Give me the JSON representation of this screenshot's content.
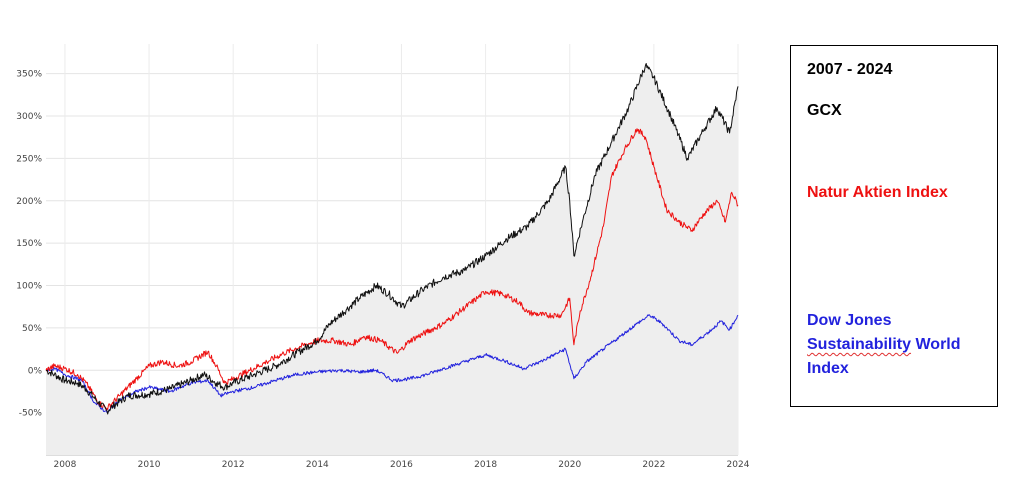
{
  "legend": {
    "period": "2007 - 2024",
    "gcx": "GCX",
    "nai": "Natur Aktien Index",
    "djsi_line1": "Dow Jones",
    "djsi_line2_a": "Sustainability",
    "djsi_line2_b": " World",
    "djsi_line3": "Index"
  },
  "chart_data": {
    "type": "line",
    "title": "",
    "xlabel": "",
    "ylabel": "",
    "xlim": [
      2007.55,
      2024.0
    ],
    "ylim": [
      -100,
      385
    ],
    "grid": true,
    "legend_position": "right",
    "x_ticks": [
      "2008",
      "2010",
      "2012",
      "2014",
      "2016",
      "2018",
      "2020",
      "2022",
      "2024"
    ],
    "y_ticks": [
      "350%",
      "300%",
      "250%",
      "200%",
      "150%",
      "100%",
      "50%",
      "0%",
      "-50%"
    ],
    "series": [
      {
        "name": "GCX",
        "color": "#111111",
        "points": [
          [
            2007.55,
            0
          ],
          [
            2007.75,
            -5
          ],
          [
            2008.0,
            -12
          ],
          [
            2008.3,
            -15
          ],
          [
            2008.5,
            -22
          ],
          [
            2008.8,
            -38
          ],
          [
            2009.0,
            -48
          ],
          [
            2009.15,
            -42
          ],
          [
            2009.5,
            -30
          ],
          [
            2010.0,
            -28
          ],
          [
            2010.5,
            -22
          ],
          [
            2011.0,
            -12
          ],
          [
            2011.3,
            -5
          ],
          [
            2011.6,
            -15
          ],
          [
            2011.8,
            -20
          ],
          [
            2012.0,
            -15
          ],
          [
            2012.5,
            -5
          ],
          [
            2013.0,
            5
          ],
          [
            2013.5,
            20
          ],
          [
            2014.0,
            35
          ],
          [
            2014.3,
            55
          ],
          [
            2014.7,
            72
          ],
          [
            2015.0,
            85
          ],
          [
            2015.4,
            100
          ],
          [
            2015.7,
            90
          ],
          [
            2016.0,
            75
          ],
          [
            2016.5,
            95
          ],
          [
            2017.0,
            110
          ],
          [
            2017.5,
            118
          ],
          [
            2018.0,
            135
          ],
          [
            2018.5,
            155
          ],
          [
            2019.0,
            170
          ],
          [
            2019.5,
            200
          ],
          [
            2019.9,
            240
          ],
          [
            2020.0,
            200
          ],
          [
            2020.1,
            135
          ],
          [
            2020.3,
            175
          ],
          [
            2020.6,
            230
          ],
          [
            2021.0,
            270
          ],
          [
            2021.4,
            310
          ],
          [
            2021.8,
            360
          ],
          [
            2022.0,
            345
          ],
          [
            2022.4,
            300
          ],
          [
            2022.8,
            250
          ],
          [
            2023.2,
            285
          ],
          [
            2023.5,
            310
          ],
          [
            2023.8,
            280
          ],
          [
            2024.0,
            335
          ]
        ]
      },
      {
        "name": "Natur Aktien Index",
        "color": "#ee1111",
        "points": [
          [
            2007.55,
            0
          ],
          [
            2007.75,
            5
          ],
          [
            2008.0,
            2
          ],
          [
            2008.3,
            -5
          ],
          [
            2008.5,
            -15
          ],
          [
            2008.8,
            -38
          ],
          [
            2009.0,
            -45
          ],
          [
            2009.3,
            -30
          ],
          [
            2009.7,
            -10
          ],
          [
            2010.0,
            5
          ],
          [
            2010.3,
            10
          ],
          [
            2010.7,
            5
          ],
          [
            2011.0,
            10
          ],
          [
            2011.4,
            22
          ],
          [
            2011.6,
            5
          ],
          [
            2011.8,
            -15
          ],
          [
            2012.0,
            -10
          ],
          [
            2012.4,
            0
          ],
          [
            2012.8,
            10
          ],
          [
            2013.2,
            20
          ],
          [
            2013.6,
            28
          ],
          [
            2014.0,
            35
          ],
          [
            2014.4,
            35
          ],
          [
            2014.8,
            30
          ],
          [
            2015.1,
            40
          ],
          [
            2015.5,
            35
          ],
          [
            2015.9,
            20
          ],
          [
            2016.2,
            35
          ],
          [
            2016.6,
            45
          ],
          [
            2017.0,
            55
          ],
          [
            2017.4,
            70
          ],
          [
            2017.8,
            85
          ],
          [
            2018.0,
            93
          ],
          [
            2018.4,
            90
          ],
          [
            2018.8,
            80
          ],
          [
            2019.0,
            68
          ],
          [
            2019.4,
            65
          ],
          [
            2019.8,
            65
          ],
          [
            2020.0,
            85
          ],
          [
            2020.1,
            30
          ],
          [
            2020.25,
            70
          ],
          [
            2020.5,
            110
          ],
          [
            2020.8,
            170
          ],
          [
            2021.0,
            230
          ],
          [
            2021.3,
            260
          ],
          [
            2021.6,
            285
          ],
          [
            2021.8,
            275
          ],
          [
            2022.0,
            240
          ],
          [
            2022.3,
            190
          ],
          [
            2022.6,
            175
          ],
          [
            2022.9,
            165
          ],
          [
            2023.2,
            185
          ],
          [
            2023.5,
            200
          ],
          [
            2023.7,
            175
          ],
          [
            2023.85,
            210
          ],
          [
            2024.0,
            195
          ]
        ]
      },
      {
        "name": "Dow Jones Sustainability World Index",
        "color": "#2222dd",
        "points": [
          [
            2007.55,
            0
          ],
          [
            2007.75,
            2
          ],
          [
            2008.0,
            -5
          ],
          [
            2008.4,
            -12
          ],
          [
            2008.7,
            -38
          ],
          [
            2009.0,
            -50
          ],
          [
            2009.3,
            -35
          ],
          [
            2009.7,
            -25
          ],
          [
            2010.0,
            -20
          ],
          [
            2010.5,
            -25
          ],
          [
            2011.0,
            -15
          ],
          [
            2011.4,
            -12
          ],
          [
            2011.7,
            -30
          ],
          [
            2012.0,
            -25
          ],
          [
            2012.5,
            -20
          ],
          [
            2013.0,
            -12
          ],
          [
            2013.5,
            -5
          ],
          [
            2014.0,
            -2
          ],
          [
            2014.5,
            0
          ],
          [
            2015.0,
            -2
          ],
          [
            2015.4,
            0
          ],
          [
            2015.8,
            -12
          ],
          [
            2016.2,
            -10
          ],
          [
            2016.6,
            -5
          ],
          [
            2017.0,
            2
          ],
          [
            2017.5,
            10
          ],
          [
            2018.0,
            18
          ],
          [
            2018.4,
            12
          ],
          [
            2018.9,
            2
          ],
          [
            2019.3,
            10
          ],
          [
            2019.9,
            25
          ],
          [
            2020.1,
            -10
          ],
          [
            2020.4,
            10
          ],
          [
            2020.8,
            25
          ],
          [
            2021.2,
            40
          ],
          [
            2021.6,
            55
          ],
          [
            2021.9,
            65
          ],
          [
            2022.2,
            55
          ],
          [
            2022.6,
            35
          ],
          [
            2022.9,
            30
          ],
          [
            2023.3,
            45
          ],
          [
            2023.6,
            58
          ],
          [
            2023.8,
            48
          ],
          [
            2024.0,
            65
          ]
        ]
      }
    ]
  }
}
